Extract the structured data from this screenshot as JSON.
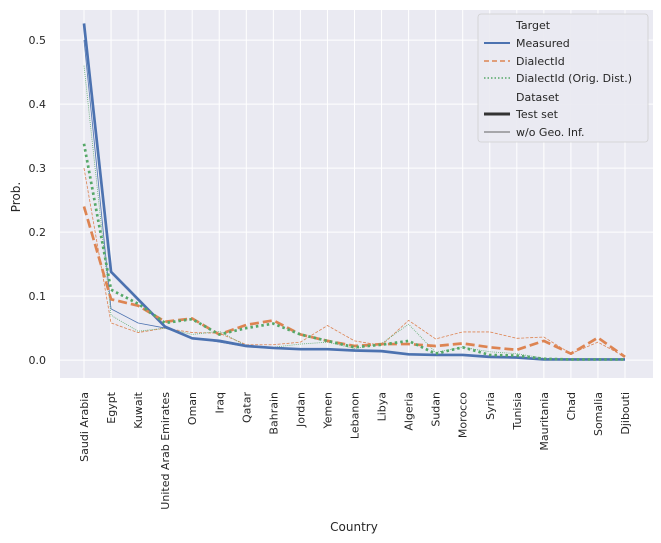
{
  "chart_data": {
    "type": "line",
    "xlabel": "Country",
    "ylabel": "Prob.",
    "ylim": [
      -0.028,
      0.547
    ],
    "yticks": [
      0.0,
      0.1,
      0.2,
      0.3,
      0.4,
      0.5
    ],
    "ytick_labels": [
      "0.0",
      "0.1",
      "0.2",
      "0.3",
      "0.4",
      "0.5"
    ],
    "grid": true,
    "legend_position": "top-right",
    "categories": [
      "Saudi Arabia",
      "Egypt",
      "Kuwait",
      "United Arab Emirates",
      "Oman",
      "Iraq",
      "Qatar",
      "Bahrain",
      "Jordan",
      "Yemen",
      "Lebanon",
      "Libya",
      "Algeria",
      "Sudan",
      "Morocco",
      "Syria",
      "Tunisia",
      "Mauritania",
      "Chad",
      "Somalia",
      "Djibouti"
    ],
    "targets": [
      {
        "name": "Measured",
        "color": "#4c72b0",
        "dash": "solid"
      },
      {
        "name": "DialectId",
        "color": "#dd8452",
        "dash": "dashed"
      },
      {
        "name": "DialectId (Orig. Dist.)",
        "color": "#55a868",
        "dash": "dotted"
      }
    ],
    "datasets": [
      {
        "name": "Test set",
        "width": "thick"
      },
      {
        "name": "w/o Geo. Inf.",
        "width": "thin"
      }
    ],
    "series": [
      {
        "target": "Measured",
        "dataset": "Test set",
        "values": [
          0.526,
          0.138,
          0.095,
          0.052,
          0.034,
          0.03,
          0.022,
          0.019,
          0.017,
          0.017,
          0.015,
          0.014,
          0.009,
          0.008,
          0.008,
          0.005,
          0.004,
          0.001,
          0.001,
          0.001,
          0.001
        ]
      },
      {
        "target": "DialectId",
        "dataset": "Test set",
        "values": [
          0.24,
          0.095,
          0.085,
          0.06,
          0.065,
          0.04,
          0.055,
          0.062,
          0.04,
          0.03,
          0.022,
          0.025,
          0.025,
          0.022,
          0.026,
          0.02,
          0.016,
          0.03,
          0.01,
          0.035,
          0.005
        ]
      },
      {
        "target": "DialectId (Orig. Dist.)",
        "dataset": "Test set",
        "values": [
          0.338,
          0.11,
          0.088,
          0.058,
          0.064,
          0.04,
          0.05,
          0.057,
          0.04,
          0.03,
          0.02,
          0.024,
          0.03,
          0.01,
          0.02,
          0.008,
          0.007,
          0.002,
          0.001,
          0.001,
          0.001
        ]
      },
      {
        "target": "Measured",
        "dataset": "w/o Geo. Inf.",
        "values": [
          0.5,
          0.08,
          0.058,
          0.05,
          0.035,
          0.028,
          0.021,
          0.018,
          0.017,
          0.016,
          0.015,
          0.014,
          0.01,
          0.008,
          0.008,
          0.005,
          0.004,
          0.001,
          0.001,
          0.001,
          0.001
        ]
      },
      {
        "target": "DialectId",
        "dataset": "w/o Geo. Inf.",
        "values": [
          0.3,
          0.058,
          0.043,
          0.05,
          0.043,
          0.042,
          0.024,
          0.024,
          0.028,
          0.054,
          0.03,
          0.023,
          0.062,
          0.033,
          0.044,
          0.044,
          0.034,
          0.036,
          0.01,
          0.028,
          0.005
        ]
      },
      {
        "target": "DialectId (Orig. Dist.)",
        "dataset": "w/o Geo. Inf.",
        "values": [
          0.46,
          0.07,
          0.045,
          0.05,
          0.04,
          0.045,
          0.022,
          0.02,
          0.025,
          0.028,
          0.018,
          0.026,
          0.056,
          0.012,
          0.02,
          0.013,
          0.01,
          0.003,
          0.001,
          0.001,
          0.001
        ]
      }
    ],
    "legend": {
      "title_target": "Target",
      "title_dataset": "Dataset"
    }
  }
}
